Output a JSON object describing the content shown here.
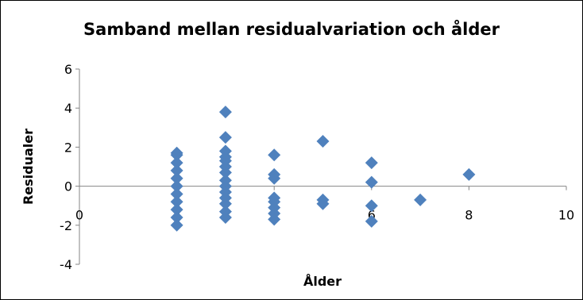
{
  "chart_data": {
    "type": "scatter",
    "title": "Samband mellan residualvariation och ålder",
    "xlabel": "Ålder",
    "ylabel": "Residualer",
    "xlim": [
      0,
      10
    ],
    "ylim": [
      -4,
      6
    ],
    "xticks": [
      0,
      2,
      4,
      6,
      8,
      10
    ],
    "yticks": [
      -4,
      -2,
      0,
      2,
      4,
      6
    ],
    "grid": false,
    "legend": "none",
    "marker_color": "#4F81BD",
    "series": [
      {
        "points": [
          [
            2,
            1.7
          ],
          [
            2,
            1.6
          ],
          [
            2,
            1.2
          ],
          [
            2,
            0.8
          ],
          [
            2,
            0.4
          ],
          [
            2,
            0.0
          ],
          [
            2,
            -0.4
          ],
          [
            2,
            -0.8
          ],
          [
            2,
            -1.2
          ],
          [
            2,
            -1.6
          ],
          [
            2,
            -2.0
          ],
          [
            3,
            3.8
          ],
          [
            3,
            2.5
          ],
          [
            3,
            1.8
          ],
          [
            3,
            1.5
          ],
          [
            3,
            1.3
          ],
          [
            3,
            1.0
          ],
          [
            3,
            0.7
          ],
          [
            3,
            0.3
          ],
          [
            3,
            0.0
          ],
          [
            3,
            -0.3
          ],
          [
            3,
            -0.6
          ],
          [
            3,
            -0.9
          ],
          [
            3,
            -1.3
          ],
          [
            3,
            -1.6
          ],
          [
            4,
            1.6
          ],
          [
            4,
            0.6
          ],
          [
            4,
            0.4
          ],
          [
            4,
            -0.6
          ],
          [
            4,
            -0.8
          ],
          [
            4,
            -1.1
          ],
          [
            4,
            -1.4
          ],
          [
            4,
            -1.7
          ],
          [
            5,
            2.3
          ],
          [
            5,
            -0.7
          ],
          [
            5,
            -0.9
          ],
          [
            6,
            1.2
          ],
          [
            6,
            0.2
          ],
          [
            6,
            -1.0
          ],
          [
            6,
            -1.8
          ],
          [
            7,
            -0.7
          ],
          [
            8,
            0.6
          ]
        ]
      }
    ]
  }
}
